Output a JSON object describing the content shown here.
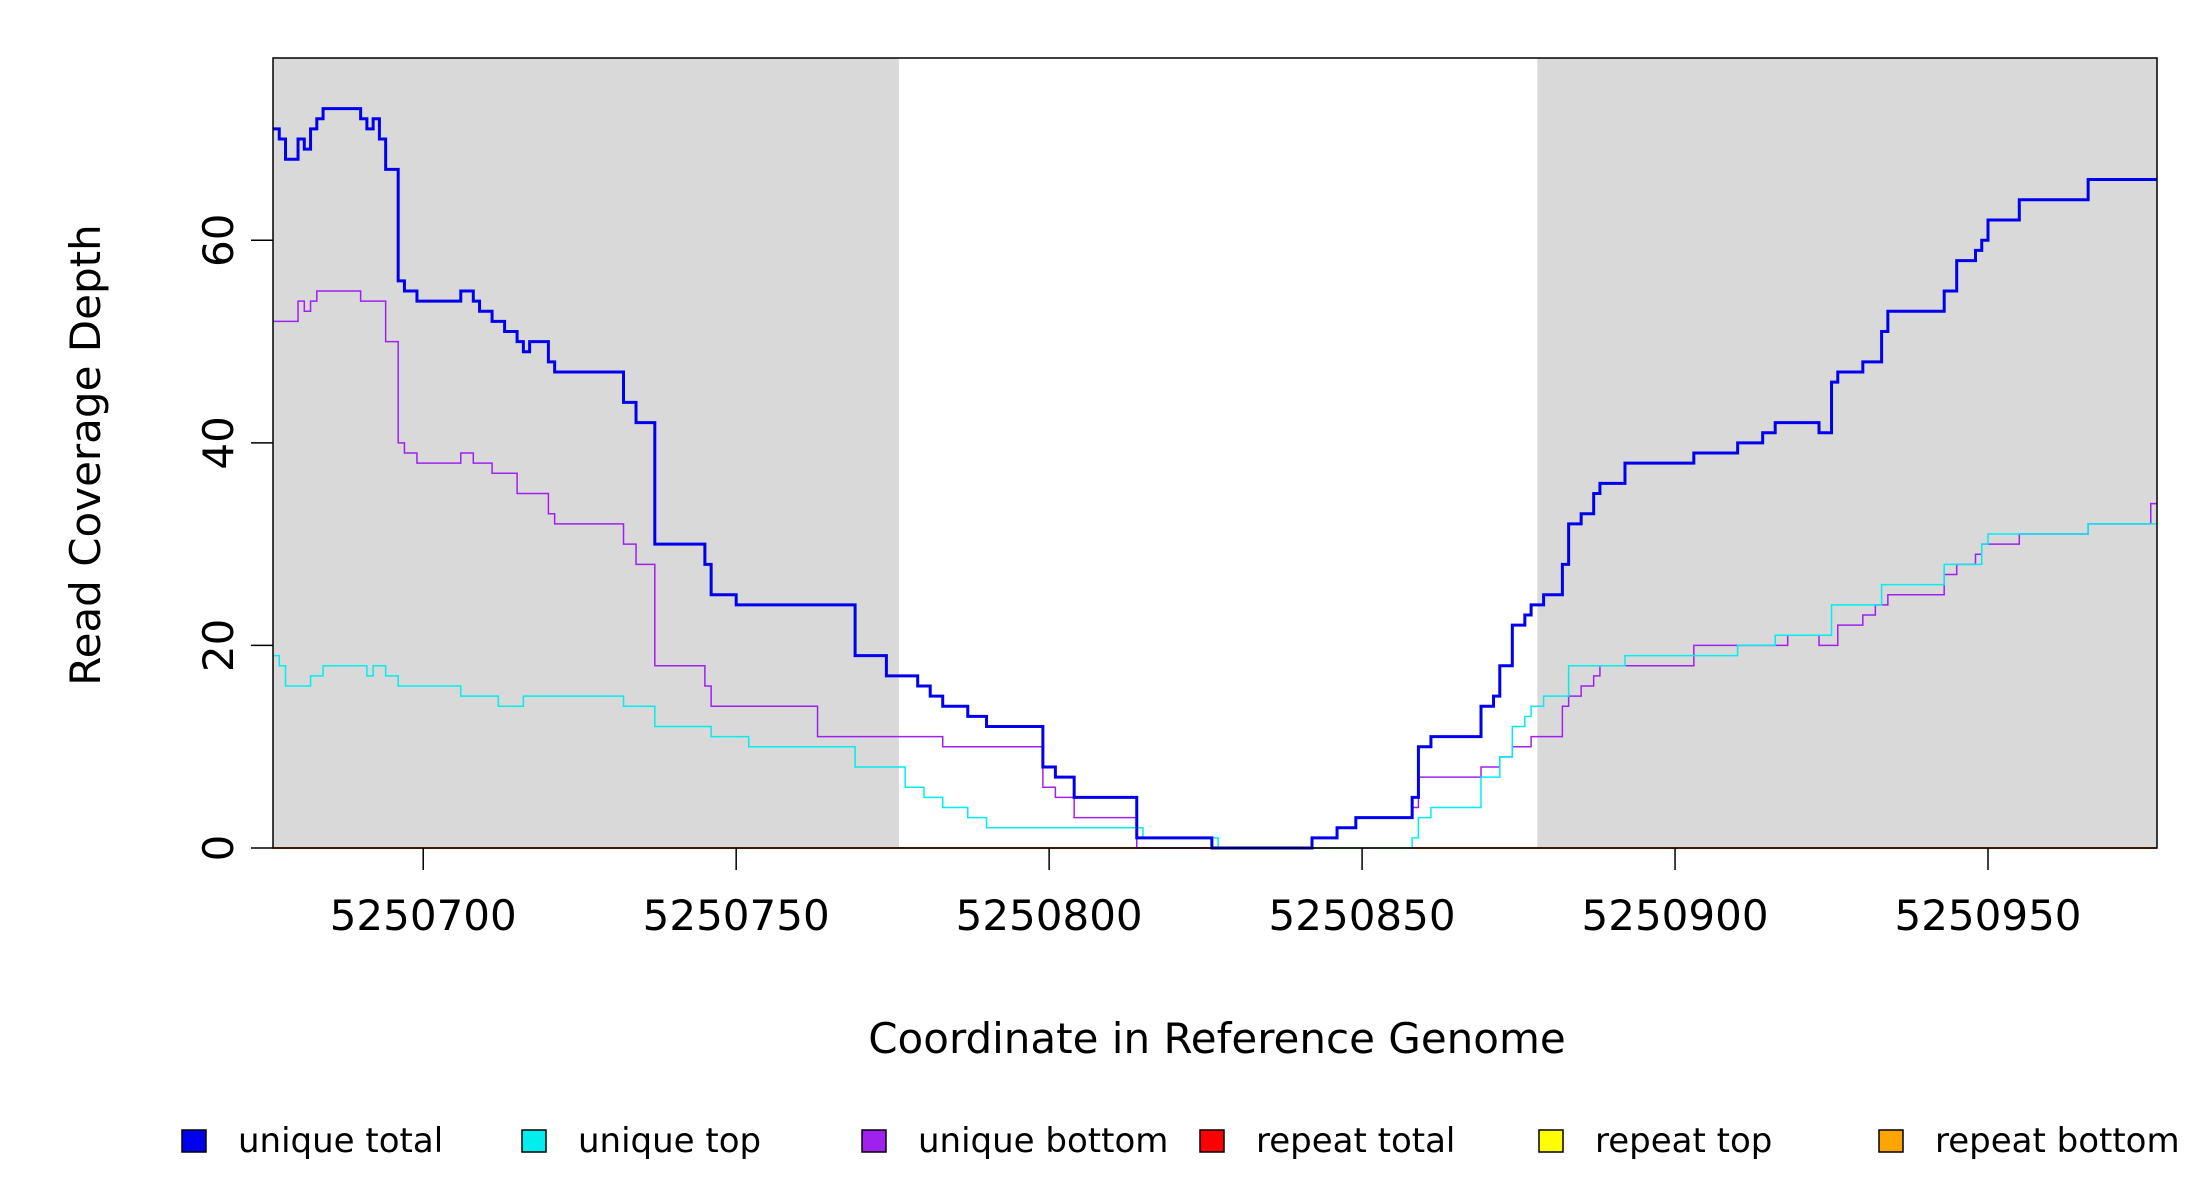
{
  "chart_data": {
    "type": "line",
    "title": "",
    "xlabel": "Coordinate in Reference Genome",
    "ylabel": "Read Coverage Depth",
    "xlim": [
      5250676,
      5250977
    ],
    "ylim": [
      0,
      78
    ],
    "x_ticks": [
      5250700,
      5250750,
      5250800,
      5250850,
      5250900,
      5250950
    ],
    "x_tick_labels": [
      "5250700",
      "5250750",
      "5250800",
      "5250850",
      "5250900",
      "5250950"
    ],
    "y_ticks": [
      0,
      20,
      40,
      60
    ],
    "y_tick_labels": [
      "0",
      "20",
      "40",
      "60"
    ],
    "shaded_regions": [
      [
        5250676,
        5250776
      ],
      [
        5250878,
        5250977
      ]
    ],
    "shade_color": "#d9d9d9",
    "grid": false,
    "legend_position": "bottom",
    "step": true,
    "series": [
      {
        "name": "unique total",
        "color": "#0000ee",
        "width": 3,
        "x": [
          5250676,
          5250677,
          5250678,
          5250680,
          5250681,
          5250682,
          5250683,
          5250684,
          5250685,
          5250690,
          5250691,
          5250692,
          5250693,
          5250694,
          5250696,
          5250697,
          5250699,
          5250705,
          5250706,
          5250708,
          5250709,
          5250711,
          5250712,
          5250713,
          5250715,
          5250716,
          5250717,
          5250718,
          5250720,
          5250721,
          5250722,
          5250723,
          5250732,
          5250734,
          5250737,
          5250739,
          5250745,
          5250746,
          5250748,
          5250750,
          5250752,
          5250763,
          5250769,
          5250774,
          5250777,
          5250779,
          5250780,
          5250781,
          5250783,
          5250784,
          5250787,
          5250788,
          5250789,
          5250790,
          5250792,
          5250794,
          5250795,
          5250797,
          5250799,
          5250801,
          5250804,
          5250805,
          5250806,
          5250807,
          5250808,
          5250814,
          5250815,
          5250826,
          5250827,
          5250842,
          5250845,
          5250846,
          5250848,
          5250849,
          5250854,
          5250858,
          5250859,
          5250861,
          5250862,
          5250863,
          5250869,
          5250871,
          5250872,
          5250874,
          5250876,
          5250877,
          5250879,
          5250882,
          5250883,
          5250885,
          5250887,
          5250888,
          5250889,
          5250890,
          5250891,
          5250892,
          5250903,
          5250904,
          5250905,
          5250910,
          5250914,
          5250916,
          5250918,
          5250923,
          5250925,
          5250926,
          5250930,
          5250932,
          5250933,
          5250934,
          5250943,
          5250945,
          5250948,
          5250949,
          5250950,
          5250955,
          5250966,
          5250976
        ],
        "y": [
          71,
          70,
          68,
          70,
          69,
          71,
          72,
          73,
          73,
          72,
          71,
          72,
          70,
          67,
          56,
          55,
          54,
          54,
          55,
          54,
          53,
          52,
          52,
          51,
          50,
          49,
          50,
          50,
          48,
          47,
          47,
          47,
          44,
          42,
          30,
          30,
          28,
          25,
          25,
          24,
          24,
          24,
          19,
          17,
          17,
          16,
          16,
          15,
          14,
          14,
          13,
          13,
          13,
          12,
          12,
          12,
          12,
          12,
          8,
          7,
          5,
          5,
          5,
          5,
          5,
          1,
          1,
          0,
          0,
          1,
          1,
          2,
          2,
          3,
          3,
          5,
          10,
          11,
          11,
          11,
          14,
          15,
          18,
          22,
          23,
          24,
          25,
          28,
          32,
          33,
          35,
          36,
          36,
          36,
          36,
          38,
          39,
          39,
          39,
          40,
          41,
          42,
          42,
          41,
          46,
          47,
          48,
          48,
          51,
          53,
          55,
          58,
          59,
          60,
          62,
          64,
          66,
          66
        ]
      },
      {
        "name": "unique top",
        "color": "#00eeee",
        "width": 1.5,
        "x": [
          5250676,
          5250677,
          5250678,
          5250680,
          5250681,
          5250682,
          5250683,
          5250684,
          5250685,
          5250690,
          5250691,
          5250692,
          5250693,
          5250694,
          5250696,
          5250699,
          5250705,
          5250706,
          5250708,
          5250711,
          5250712,
          5250713,
          5250715,
          5250716,
          5250717,
          5250720,
          5250721,
          5250722,
          5250723,
          5250732,
          5250734,
          5250737,
          5250739,
          5250745,
          5250746,
          5250748,
          5250750,
          5250752,
          5250763,
          5250769,
          5250774,
          5250777,
          5250779,
          5250780,
          5250781,
          5250783,
          5250784,
          5250787,
          5250788,
          5250789,
          5250790,
          5250792,
          5250794,
          5250795,
          5250797,
          5250799,
          5250801,
          5250804,
          5250805,
          5250806,
          5250807,
          5250808,
          5250814,
          5250815,
          5250826,
          5250827,
          5250842,
          5250848,
          5250854,
          5250858,
          5250859,
          5250861,
          5250862,
          5250863,
          5250869,
          5250871,
          5250872,
          5250874,
          5250876,
          5250877,
          5250879,
          5250882,
          5250883,
          5250885,
          5250887,
          5250888,
          5250889,
          5250890,
          5250891,
          5250892,
          5250903,
          5250904,
          5250905,
          5250910,
          5250914,
          5250916,
          5250918,
          5250923,
          5250925,
          5250926,
          5250930,
          5250932,
          5250933,
          5250934,
          5250943,
          5250945,
          5250948,
          5250949,
          5250950,
          5250955,
          5250966,
          5250976
        ],
        "y": [
          19,
          18,
          16,
          16,
          16,
          17,
          17,
          18,
          18,
          18,
          17,
          18,
          18,
          17,
          16,
          16,
          16,
          15,
          15,
          15,
          14,
          14,
          14,
          15,
          15,
          15,
          15,
          15,
          15,
          14,
          14,
          12,
          12,
          12,
          11,
          11,
          11,
          10,
          10,
          8,
          8,
          6,
          6,
          5,
          5,
          4,
          4,
          3,
          3,
          3,
          2,
          2,
          2,
          2,
          2,
          2,
          2,
          2,
          2,
          2,
          2,
          2,
          2,
          1,
          1,
          0,
          0,
          0,
          0,
          1,
          3,
          4,
          4,
          4,
          7,
          7,
          9,
          12,
          13,
          14,
          15,
          15,
          18,
          18,
          18,
          18,
          18,
          18,
          18,
          19,
          19,
          19,
          19,
          20,
          20,
          21,
          21,
          21,
          24,
          24,
          24,
          24,
          26,
          26,
          28,
          28,
          28,
          30,
          31,
          31,
          32,
          32
        ]
      },
      {
        "name": "unique bottom",
        "color": "#a020f0",
        "width": 1.5,
        "x": [
          5250676,
          5250680,
          5250681,
          5250682,
          5250683,
          5250684,
          5250690,
          5250694,
          5250696,
          5250697,
          5250699,
          5250705,
          5250706,
          5250708,
          5250711,
          5250712,
          5250715,
          5250716,
          5250720,
          5250721,
          5250723,
          5250732,
          5250734,
          5250737,
          5250739,
          5250745,
          5250746,
          5250752,
          5250763,
          5250769,
          5250779,
          5250783,
          5250784,
          5250787,
          5250788,
          5250789,
          5250790,
          5250792,
          5250794,
          5250795,
          5250797,
          5250799,
          5250801,
          5250804,
          5250805,
          5250806,
          5250807,
          5250808,
          5250814,
          5250815,
          5250826,
          5250827,
          5250842,
          5250845,
          5250846,
          5250848,
          5250849,
          5250854,
          5250858,
          5250859,
          5250861,
          5250862,
          5250863,
          5250869,
          5250871,
          5250872,
          5250874,
          5250876,
          5250877,
          5250879,
          5250882,
          5250883,
          5250885,
          5250887,
          5250888,
          5250889,
          5250890,
          5250891,
          5250892,
          5250903,
          5250904,
          5250905,
          5250910,
          5250914,
          5250916,
          5250918,
          5250923,
          5250925,
          5250926,
          5250930,
          5250932,
          5250933,
          5250934,
          5250943,
          5250945,
          5250948,
          5250949,
          5250950,
          5250955,
          5250966,
          5250976
        ],
        "y": [
          52,
          54,
          53,
          54,
          55,
          55,
          54,
          50,
          40,
          39,
          38,
          38,
          39,
          38,
          37,
          37,
          35,
          35,
          33,
          32,
          32,
          30,
          28,
          18,
          18,
          16,
          14,
          14,
          11,
          11,
          11,
          10,
          10,
          10,
          10,
          10,
          10,
          10,
          10,
          10,
          10,
          6,
          5,
          3,
          3,
          3,
          3,
          3,
          0,
          0,
          0,
          0,
          1,
          1,
          2,
          2,
          3,
          3,
          4,
          7,
          7,
          7,
          7,
          8,
          8,
          9,
          10,
          10,
          11,
          11,
          14,
          15,
          16,
          17,
          18,
          18,
          18,
          18,
          18,
          20,
          20,
          20,
          20,
          20,
          20,
          21,
          20,
          20,
          22,
          23,
          24,
          24,
          25,
          27,
          28,
          29,
          30,
          30,
          31,
          32,
          34
        ]
      },
      {
        "name": "repeat total",
        "color": "#ff0000",
        "width": 1.5,
        "x": [
          5250676,
          5250977
        ],
        "y": [
          0,
          0
        ]
      },
      {
        "name": "repeat top",
        "color": "#ffff00",
        "width": 1.5,
        "x": [
          5250676,
          5250977
        ],
        "y": [
          0,
          0
        ]
      },
      {
        "name": "repeat bottom",
        "color": "#ffa500",
        "width": 2,
        "x": [
          5250676,
          5250977
        ],
        "y": [
          0,
          0
        ]
      }
    ]
  }
}
